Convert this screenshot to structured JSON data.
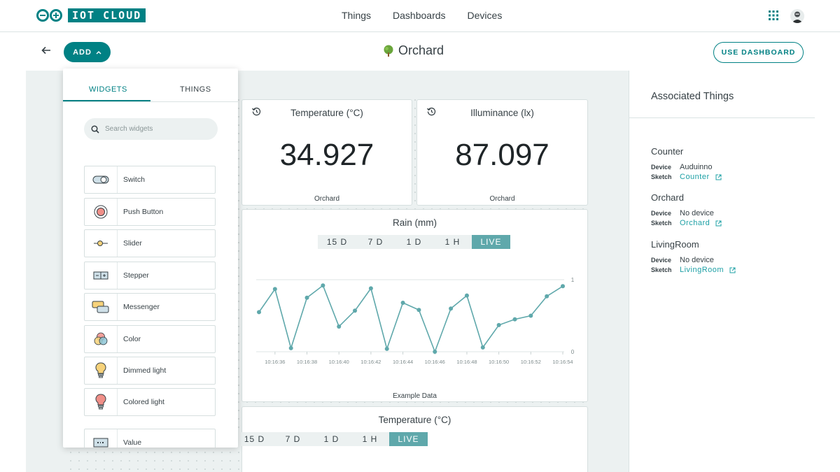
{
  "app": {
    "logo_text": "IOT CLOUD"
  },
  "nav": {
    "items": [
      "Things",
      "Dashboards",
      "Devices"
    ]
  },
  "header": {
    "add_label": "ADD",
    "title": "Orchard",
    "use_dashboard_label": "USE DASHBOARD"
  },
  "drawer": {
    "tabs": [
      "WIDGETS",
      "THINGS"
    ],
    "search_placeholder": "Search widgets",
    "widgets": [
      {
        "label": "Switch",
        "icon": "switch-icon"
      },
      {
        "label": "Push Button",
        "icon": "push-button-icon"
      },
      {
        "label": "Slider",
        "icon": "slider-icon"
      },
      {
        "label": "Stepper",
        "icon": "stepper-icon"
      },
      {
        "label": "Messenger",
        "icon": "messenger-icon"
      },
      {
        "label": "Color",
        "icon": "color-icon"
      },
      {
        "label": "Dimmed light",
        "icon": "dimmed-light-icon"
      },
      {
        "label": "Colored light",
        "icon": "colored-light-icon"
      },
      {
        "label": "Value",
        "icon": "value-icon"
      }
    ]
  },
  "cards": {
    "temperature": {
      "title": "Temperature (°C)",
      "value": "34.927",
      "footer": "Orchard"
    },
    "illuminance": {
      "title": "Illuminance (lx)",
      "value": "87.097",
      "footer": "Orchard"
    },
    "rain": {
      "title": "Rain (mm)",
      "footer": "Example Data",
      "ranges": [
        "15 D",
        "7 D",
        "1 D",
        "1 H",
        "LIVE"
      ],
      "active_range": "LIVE"
    },
    "temperature_chart": {
      "title": "Temperature (°C)",
      "ranges": [
        "15 D",
        "7 D",
        "1 D",
        "1 H",
        "LIVE"
      ],
      "active_range": "LIVE"
    }
  },
  "chart_data": {
    "type": "line",
    "title": "Rain (mm)",
    "xlabel": "Example Data",
    "ylabel": "",
    "ylim": [
      0,
      1
    ],
    "y_ticks": [
      "1",
      "0"
    ],
    "x_ticks": [
      "10:16:36",
      "10:16:38",
      "10:16:40",
      "10:16:42",
      "10:16:44",
      "10:16:46",
      "10:16:48",
      "10:16:50",
      "10:16:52",
      "10:16:54"
    ],
    "x": [
      "10:16:35",
      "10:16:36",
      "10:16:37",
      "10:16:38",
      "10:16:39",
      "10:16:40",
      "10:16:41",
      "10:16:42",
      "10:16:43",
      "10:16:44",
      "10:16:45",
      "10:16:46",
      "10:16:47",
      "10:16:48",
      "10:16:49",
      "10:16:50",
      "10:16:51",
      "10:16:52",
      "10:16:53",
      "10:16:54"
    ],
    "values": [
      0.55,
      0.87,
      0.05,
      0.75,
      0.92,
      0.35,
      0.57,
      0.88,
      0.04,
      0.68,
      0.58,
      0.0,
      0.6,
      0.78,
      0.06,
      0.37,
      0.45,
      0.5,
      0.77,
      0.91
    ],
    "grid": true,
    "color": "#5fa8ab"
  },
  "associated": {
    "title": "Associated Things",
    "device_label": "Device",
    "sketch_label": "Sketch",
    "things": [
      {
        "name": "Counter",
        "device": "Auduinno",
        "sketch": "Counter"
      },
      {
        "name": "Orchard",
        "device": "No device",
        "sketch": "Orchard"
      },
      {
        "name": "LivingRoom",
        "device": "No device",
        "sketch": "LivingRoom"
      }
    ]
  },
  "colors": {
    "accent": "#008184",
    "chart": "#5fa8ab",
    "canvas": "#ecf1f1"
  }
}
